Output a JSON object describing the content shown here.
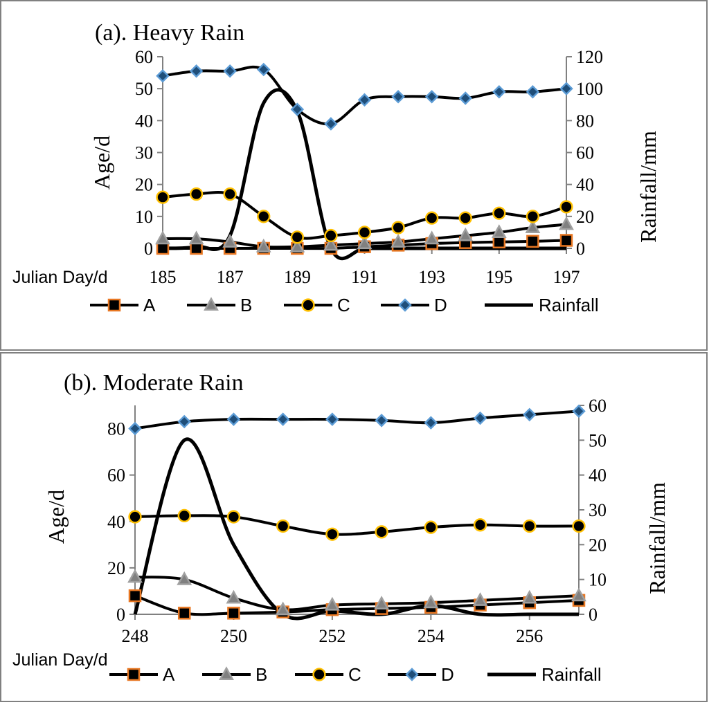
{
  "chart_data": [
    {
      "type": "line",
      "title": "(a). Heavy Rain",
      "xlabel": "Julian Day/d",
      "ylabel": "Age/d",
      "y2label": "Rainfall/mm",
      "x": [
        185,
        186,
        187,
        188,
        189,
        190,
        191,
        192,
        193,
        194,
        195,
        196,
        197
      ],
      "xticks": [
        185,
        187,
        189,
        191,
        193,
        195,
        197
      ],
      "xlim": [
        185,
        197
      ],
      "ylim": [
        0,
        60
      ],
      "yticks": [
        0,
        10,
        20,
        30,
        40,
        50,
        60
      ],
      "y2lim": [
        0,
        120
      ],
      "y2ticks": [
        0,
        20,
        40,
        60,
        80,
        100,
        120
      ],
      "series": [
        {
          "name": "A",
          "axis": "left",
          "marker": "square",
          "values": [
            0,
            0,
            0,
            0,
            0,
            0,
            0.5,
            1,
            1.5,
            1.8,
            2,
            2.2,
            2.5
          ]
        },
        {
          "name": "B",
          "axis": "left",
          "marker": "triangle",
          "values": [
            3,
            3,
            2,
            0.5,
            0.5,
            1,
            1.5,
            2,
            3,
            4,
            5,
            6.5,
            7.5
          ]
        },
        {
          "name": "C",
          "axis": "left",
          "marker": "circle",
          "values": [
            16,
            17,
            17,
            10,
            3.5,
            4,
            5,
            6.5,
            9.5,
            9.5,
            11,
            10,
            13
          ]
        },
        {
          "name": "D",
          "axis": "left",
          "marker": "diamond",
          "values": [
            54,
            55.5,
            55.5,
            56,
            43.5,
            39,
            46.5,
            47.5,
            47.5,
            47,
            49,
            49,
            50
          ]
        },
        {
          "name": "Rainfall",
          "axis": "right",
          "marker": "none",
          "values": [
            0,
            1,
            8,
            91,
            86,
            0,
            0,
            0,
            0,
            0,
            0,
            0,
            0
          ]
        }
      ],
      "legend": [
        "A",
        "B",
        "C",
        "D",
        "Rainfall"
      ],
      "legend_position": "bottom",
      "grid": false
    },
    {
      "type": "line",
      "title": "(b). Moderate Rain",
      "xlabel": "Julian Day/d",
      "ylabel": "Age/d",
      "y2label": "Rainfall/mm",
      "x": [
        248,
        249,
        250,
        251,
        252,
        253,
        254,
        255,
        256,
        257
      ],
      "xticks": [
        248,
        250,
        252,
        254,
        256
      ],
      "xlim": [
        248,
        257
      ],
      "ylim": [
        0,
        90
      ],
      "yticks": [
        0,
        20,
        40,
        60,
        80
      ],
      "y2lim": [
        0,
        60
      ],
      "y2ticks": [
        0,
        10,
        20,
        30,
        40,
        50,
        60
      ],
      "series": [
        {
          "name": "A",
          "axis": "left",
          "marker": "square",
          "values": [
            8,
            0.5,
            0.5,
            1,
            2,
            2.5,
            3,
            4,
            5,
            6
          ]
        },
        {
          "name": "B",
          "axis": "left",
          "marker": "triangle",
          "values": [
            16,
            15,
            7,
            2,
            4,
            4.5,
            5,
            6,
            7,
            8
          ]
        },
        {
          "name": "C",
          "axis": "left",
          "marker": "circle",
          "values": [
            42,
            42.5,
            42,
            38,
            34.5,
            35.5,
            37.5,
            38.5,
            38,
            38
          ]
        },
        {
          "name": "D",
          "axis": "left",
          "marker": "diamond",
          "values": [
            80,
            83,
            84,
            84,
            84,
            83.5,
            82.5,
            84.5,
            86,
            87.5
          ]
        },
        {
          "name": "Rainfall",
          "axis": "right",
          "marker": "none",
          "values": [
            0,
            50,
            20,
            0,
            1,
            0,
            2.5,
            0,
            0,
            0
          ]
        }
      ],
      "legend": [
        "A",
        "B",
        "C",
        "D",
        "Rainfall"
      ],
      "legend_position": "bottom",
      "grid": false
    }
  ]
}
